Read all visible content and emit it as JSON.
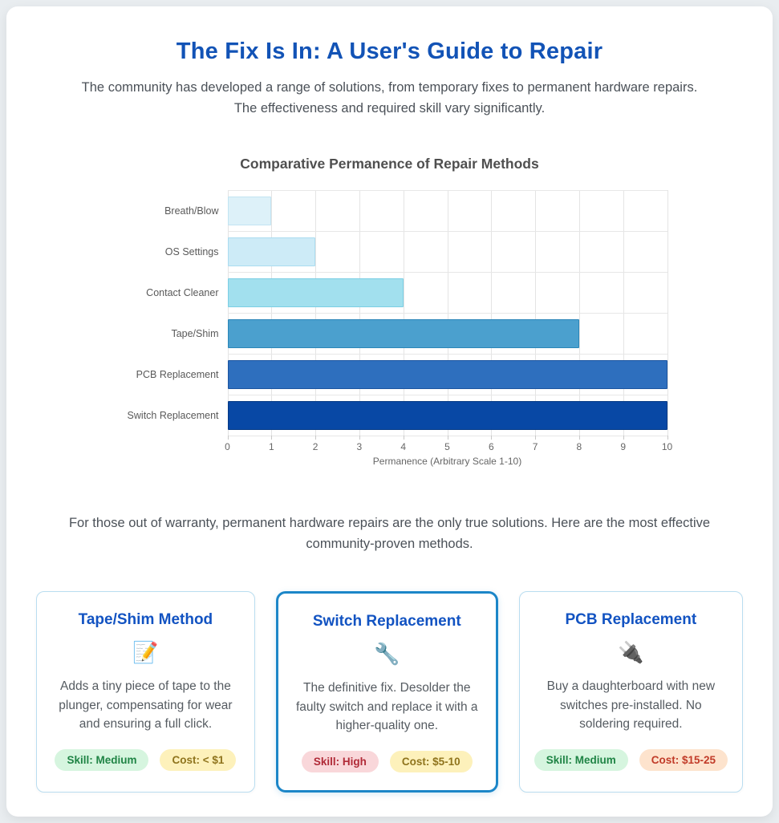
{
  "page": {
    "title": "The Fix Is In: A User's Guide to Repair",
    "intro": "The community has developed a range of solutions, from temporary fixes to permanent hardware repairs. The effectiveness and required skill vary significantly.",
    "mid_text": "For those out of warranty, permanent hardware repairs are the only true solutions. Here are the most effective community-proven methods."
  },
  "chart_data": {
    "type": "bar",
    "orientation": "horizontal",
    "title": "Comparative Permanence of Repair Methods",
    "categories": [
      "Breath/Blow",
      "OS Settings",
      "Contact Cleaner",
      "Tape/Shim",
      "PCB Replacement",
      "Switch Replacement"
    ],
    "values": [
      1,
      2,
      4,
      8,
      10,
      10
    ],
    "xlabel": "Permanence (Arbitrary Scale 1-10)",
    "xlim": [
      0,
      10
    ],
    "ticks": [
      0,
      1,
      2,
      3,
      4,
      5,
      6,
      7,
      8,
      9,
      10
    ],
    "grid": true,
    "legend": "none",
    "bar_colors": [
      "#ddf1f9",
      "#cdebf7",
      "#a2e0ee",
      "#4ba0ce",
      "#2e6fbe",
      "#0848a5"
    ],
    "bar_border_colors": [
      "#c2e4f2",
      "#aadcf0",
      "#7ccfe4",
      "#2b86b8",
      "#1c55a0",
      "#063a85"
    ]
  },
  "cards": [
    {
      "title": "Tape/Shim Method",
      "icon": "📝",
      "icon_name": "memo-icon",
      "description": "Adds a tiny piece of tape to the plunger, compensating for wear and ensuring a full click.",
      "highlighted": false,
      "badges": [
        {
          "label": "Skill: Medium",
          "variant": "green"
        },
        {
          "label": "Cost: < $1",
          "variant": "yellow"
        }
      ]
    },
    {
      "title": "Switch Replacement",
      "icon": "🔧",
      "icon_name": "wrench-icon",
      "description": "The definitive fix. Desolder the faulty switch and replace it with a higher-quality one.",
      "highlighted": true,
      "badges": [
        {
          "label": "Skill: High",
          "variant": "red"
        },
        {
          "label": "Cost: $5-10",
          "variant": "yellow"
        }
      ]
    },
    {
      "title": "PCB Replacement",
      "icon": "🔌",
      "icon_name": "plug-icon",
      "description": "Buy a daughterboard with new switches pre-installed. No soldering required.",
      "highlighted": false,
      "badges": [
        {
          "label": "Skill: Medium",
          "variant": "green"
        },
        {
          "label": "Cost: $15-25",
          "variant": "orange"
        }
      ]
    }
  ],
  "colors": {
    "accent_blue": "#1253b6",
    "highlight_border": "#1c86c8",
    "page_background": "#e9edf0",
    "card_border": "#b9ddf0"
  }
}
